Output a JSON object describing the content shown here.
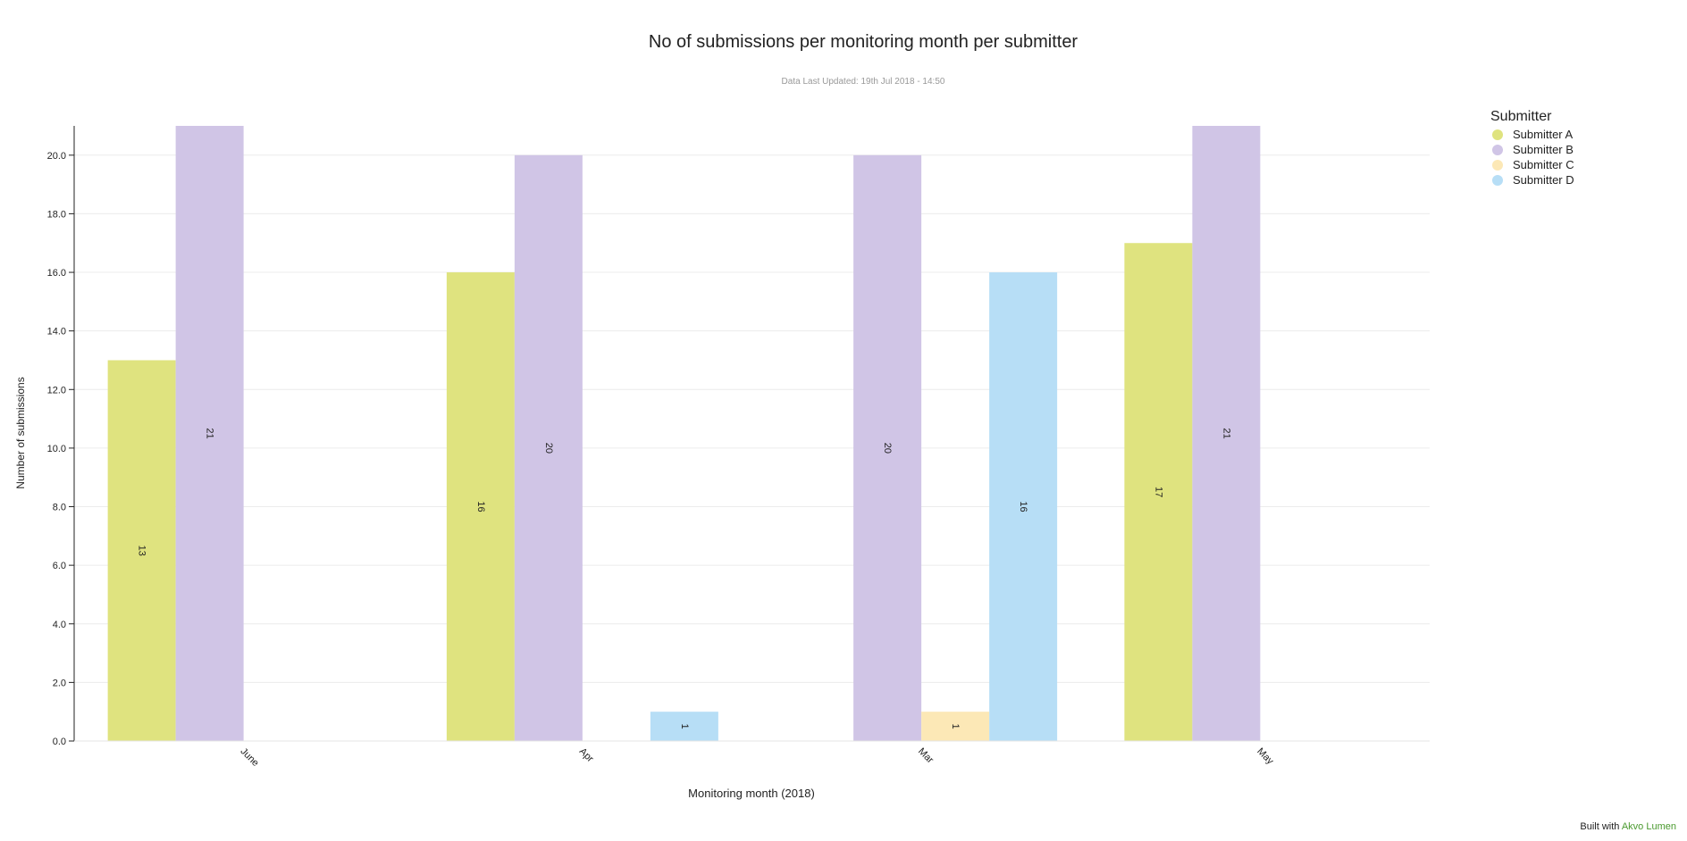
{
  "header": {
    "title": "No of submissions per monitoring month per submitter",
    "subtitle": "Data Last Updated: 19th Jul 2018 - 14:50"
  },
  "legend": {
    "title": "Submitter",
    "items": [
      {
        "label": "Submitter A",
        "color": "#dfe37f"
      },
      {
        "label": "Submitter B",
        "color": "#d0c5e6"
      },
      {
        "label": "Submitter C",
        "color": "#fce8b6"
      },
      {
        "label": "Submitter D",
        "color": "#b7def6"
      }
    ]
  },
  "footer": {
    "prefix": "Built with",
    "link_text": "Akvo Lumen"
  },
  "chart_data": {
    "type": "bar",
    "title": "No of submissions per monitoring month per submitter",
    "subtitle": "Data Last Updated: 19th Jul 2018 - 14:50",
    "xlabel": "Monitoring month (2018)",
    "ylabel": "Number of submissions",
    "categories": [
      "June",
      "Apr",
      "Mar",
      "May"
    ],
    "ylim": [
      0,
      21
    ],
    "yticks": [
      "0.0",
      "2.0",
      "4.0",
      "6.0",
      "8.0",
      "10.0",
      "12.0",
      "14.0",
      "16.0",
      "18.0",
      "20.0"
    ],
    "grid": true,
    "legend_position": "top-right",
    "series": [
      {
        "name": "Submitter A",
        "color": "#dfe37f",
        "values": [
          13,
          16,
          null,
          17
        ]
      },
      {
        "name": "Submitter B",
        "color": "#d0c5e6",
        "values": [
          21,
          20,
          20,
          21
        ]
      },
      {
        "name": "Submitter C",
        "color": "#fce8b6",
        "values": [
          null,
          null,
          1,
          null
        ]
      },
      {
        "name": "Submitter D",
        "color": "#b7def6",
        "values": [
          null,
          1,
          16,
          null
        ]
      }
    ]
  }
}
